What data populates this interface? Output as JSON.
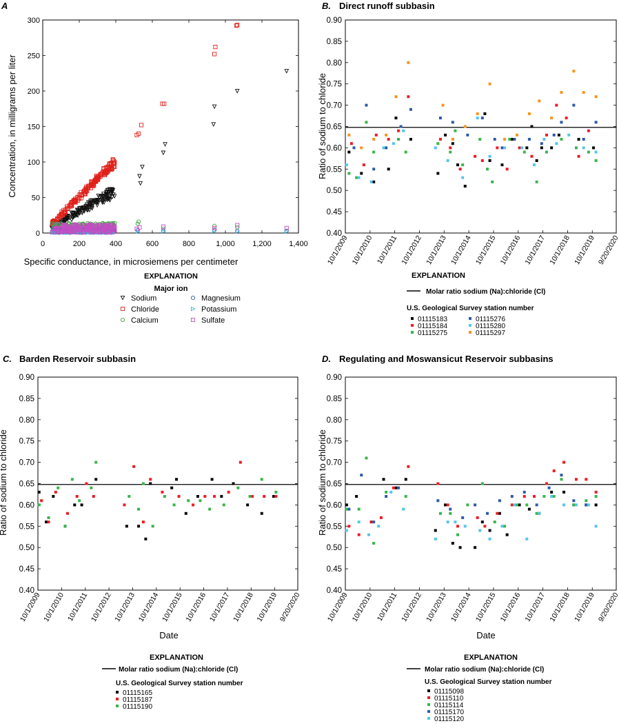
{
  "colors": {
    "sodium": "#111111",
    "chloride": "#e0201a",
    "calcium": "#3aa63a",
    "magnesium": "#2c57b5",
    "potassium": "#3ab0d6",
    "sulfate": "#c24ec2",
    "s1": "#000000",
    "s2": "#ee1c24",
    "s3": "#39b54a",
    "s4": "#2e5aa8",
    "s5": "#56c5e8",
    "s6": "#f7941d"
  },
  "chart_data": [
    {
      "panel": "A",
      "type": "scatter",
      "xlabel": "Specific conductance, in microsiemens per centimeter",
      "ylabel": "Concentration, in milligrams per liter",
      "xlim": [
        0,
        1400
      ],
      "ylim": [
        0,
        300
      ],
      "xticks": [
        "0",
        "200",
        "400",
        "600",
        "800",
        "1,000",
        "1,200",
        "1,400"
      ],
      "yticks": [
        "0",
        "50",
        "100",
        "150",
        "200",
        "250",
        "300"
      ],
      "legend_title": "EXPLANATION",
      "legend_subtitle": "Major ion",
      "series": [
        {
          "key": "sodium",
          "name": "Sodium",
          "marker": "triangle-down",
          "trend": [
            0.13,
            0.17
          ],
          "x": [
            530,
            545,
            535,
            660,
            670,
            935,
            940,
            1065,
            1335
          ],
          "y": [
            80,
            93,
            70,
            113,
            125,
            153,
            178,
            200,
            228
          ]
        },
        {
          "key": "chloride",
          "name": "Chloride",
          "marker": "square",
          "trend": [
            0.24,
            0.27
          ],
          "x": [
            515,
            525,
            540,
            655,
            665,
            940,
            945,
            1060,
            1065
          ],
          "y": [
            138,
            140,
            152,
            182,
            182,
            252,
            262,
            292,
            293
          ]
        },
        {
          "key": "calcium",
          "name": "Calcium",
          "marker": "circle",
          "trend": [
            8,
            14
          ],
          "x": [
            520,
            525,
            660,
            940,
            1065
          ],
          "y": [
            13,
            16,
            6,
            10,
            8
          ]
        },
        {
          "key": "magnesium",
          "name": "Magnesium",
          "marker": "circle",
          "trend": [
            2,
            5
          ],
          "x": [
            520,
            660,
            940,
            1065,
            1335
          ],
          "y": [
            4,
            3,
            4,
            3,
            3
          ]
        },
        {
          "key": "potassium",
          "name": "Potassium",
          "marker": "triangle-right",
          "trend": [
            1,
            3
          ],
          "x": [
            520,
            660,
            940,
            1065,
            1335
          ],
          "y": [
            2,
            2,
            3,
            2,
            2
          ]
        },
        {
          "key": "sulfate",
          "name": "Sulfate",
          "marker": "square",
          "trend": [
            4,
            12
          ],
          "x": [
            515,
            530,
            660,
            940,
            1065,
            1335
          ],
          "y": [
            6,
            8,
            9,
            7,
            11,
            7
          ]
        }
      ]
    },
    {
      "panel": "B",
      "title": "Direct runoff subbasin",
      "type": "scatter",
      "ylabel": "Ratio of sodium to chloride",
      "xlabel": "",
      "ylim": [
        0.4,
        0.9
      ],
      "yticks": [
        "0.40",
        "0.45",
        "0.50",
        "0.55",
        "0.60",
        "0.65",
        "0.70",
        "0.75",
        "0.80",
        "0.85",
        "0.90"
      ],
      "xticks": [
        "10/1/2009",
        "10/1/2010",
        "10/1/2011",
        "10/1/2012",
        "10/1/2013",
        "10/1/2014",
        "10/1/2015",
        "10/1/2016",
        "10/1/2017",
        "10/1/2018",
        "10/1/2019",
        "9/20/2020"
      ],
      "reference_line": {
        "value": 0.648,
        "label": "Molar ratio sodium (Na):chloride (Cl)"
      },
      "legend_title": "EXPLANATION",
      "legend_subtitle": "U.S. Geological Survey station number",
      "series": [
        {
          "name": "01115183",
          "color_key": "s1",
          "x": [
            2009.9,
            2010.4,
            2010.9,
            2011.5,
            2011.8,
            2012.4,
            2013.5,
            2013.8,
            2014.1,
            2014.3,
            2014.6,
            2015.4,
            2015.6,
            2016.1,
            2016.5,
            2017.1,
            2017.3,
            2017.5,
            2017.7,
            2018.1,
            2018.4,
            2019.2,
            2019.8
          ],
          "y": [
            0.59,
            0.54,
            0.52,
            0.55,
            0.67,
            0.62,
            0.54,
            0.63,
            0.61,
            0.56,
            0.51,
            0.68,
            0.57,
            0.56,
            0.62,
            0.6,
            0.65,
            0.57,
            0.6,
            0.6,
            0.63,
            0.62,
            0.6
          ]
        },
        {
          "name": "01115184",
          "color_key": "s2",
          "x": [
            2010.0,
            2010.5,
            2011.0,
            2011.5,
            2011.9,
            2012.3,
            2013.6,
            2014.0,
            2014.4,
            2015.0,
            2015.3,
            2015.9,
            2016.3,
            2016.8,
            2017.3,
            2017.9,
            2018.3,
            2018.7,
            2019.2,
            2019.6
          ],
          "y": [
            0.61,
            0.56,
            0.63,
            0.62,
            0.64,
            0.72,
            0.62,
            0.6,
            0.55,
            0.58,
            0.57,
            0.6,
            0.55,
            0.6,
            0.58,
            0.63,
            0.7,
            0.67,
            0.58,
            0.64
          ]
        },
        {
          "name": "01115275",
          "color_key": "s3",
          "x": [
            2009.9,
            2010.2,
            2010.6,
            2010.9,
            2011.4,
            2011.9,
            2012.2,
            2013.5,
            2014.0,
            2014.2,
            2014.5,
            2015.2,
            2015.5,
            2015.7,
            2016.4,
            2017.0,
            2017.5,
            2017.9,
            2018.5,
            2019.1,
            2019.6,
            2019.9
          ],
          "y": [
            0.54,
            0.53,
            0.66,
            0.59,
            0.6,
            0.62,
            0.59,
            0.61,
            0.59,
            0.64,
            0.56,
            0.62,
            0.55,
            0.52,
            0.62,
            0.59,
            0.52,
            0.59,
            0.62,
            0.6,
            0.59,
            0.57
          ]
        },
        {
          "name": "01115276",
          "color_key": "s4",
          "x": [
            2010.1,
            2010.6,
            2010.9,
            2011.4,
            2012.0,
            2012.4,
            2013.6,
            2014.1,
            2014.7,
            2015.3,
            2015.8,
            2016.1,
            2016.6,
            2017.2,
            2017.7,
            2018.2,
            2018.5,
            2019.0,
            2019.4,
            2019.9
          ],
          "y": [
            0.6,
            0.7,
            0.55,
            0.6,
            0.65,
            0.69,
            0.67,
            0.66,
            0.63,
            0.67,
            0.62,
            0.6,
            0.62,
            0.62,
            0.61,
            0.63,
            0.66,
            0.7,
            0.62,
            0.66
          ]
        },
        {
          "name": "01115280",
          "color_key": "s5",
          "x": [
            2009.8,
            2010.3,
            2010.8,
            2011.3,
            2011.7,
            2012.1,
            2013.4,
            2013.9,
            2014.5,
            2015.1,
            2015.6,
            2016.2,
            2016.9,
            2017.4,
            2017.8,
            2018.3,
            2018.8,
            2019.4,
            2019.9
          ],
          "y": [
            0.56,
            0.53,
            0.52,
            0.6,
            0.61,
            0.64,
            0.6,
            0.57,
            0.53,
            0.67,
            0.58,
            0.6,
            0.6,
            0.56,
            0.62,
            0.61,
            0.63,
            0.6,
            0.59
          ]
        },
        {
          "name": "01115297",
          "color_key": "s6",
          "x": [
            2009.9,
            2010.4,
            2010.9,
            2011.4,
            2011.8,
            2012.3,
            2013.7,
            2014.1,
            2014.6,
            2015.1,
            2015.6,
            2016.2,
            2016.7,
            2017.2,
            2017.6,
            2018.1,
            2018.5,
            2019.0,
            2019.4,
            2019.9
          ],
          "y": [
            0.63,
            0.6,
            0.62,
            0.63,
            0.72,
            0.8,
            0.7,
            0.62,
            0.65,
            0.68,
            0.75,
            0.62,
            0.63,
            0.68,
            0.71,
            0.67,
            0.73,
            0.78,
            0.73,
            0.72
          ]
        }
      ]
    },
    {
      "panel": "C",
      "title": "Barden Reservoir subbasin",
      "type": "scatter",
      "ylabel": "Ratio of sodium to chloride",
      "xlabel": "Date",
      "ylim": [
        0.4,
        0.9
      ],
      "yticks": [
        "0.40",
        "0.45",
        "0.50",
        "0.55",
        "0.60",
        "0.65",
        "0.70",
        "0.75",
        "0.80",
        "0.85",
        "0.90"
      ],
      "xticks": [
        "10/1/2009",
        "10/1/2010",
        "10/1/2011",
        "10/1/2012",
        "10/1/2013",
        "10/1/2014",
        "10/1/2015",
        "10/1/2016",
        "10/1/2017",
        "10/1/2018",
        "10/1/2019",
        "9/20/2020"
      ],
      "reference_line": {
        "value": 0.648,
        "label": "Molar ratio sodium (Na):chloride (Cl)"
      },
      "legend_title": "EXPLANATION",
      "legend_subtitle": "U.S. Geological Survey station number",
      "series": [
        {
          "name": "01115165",
          "color_key": "s1",
          "x": [
            2009.8,
            2010.1,
            2010.4,
            2010.9,
            2011.3,
            2011.6,
            2012.2,
            2013.5,
            2014.0,
            2014.3,
            2014.5,
            2015.4,
            2015.6,
            2016.0,
            2016.5,
            2017.1,
            2017.5,
            2018.0,
            2018.6,
            2019.2,
            2019.7
          ],
          "y": [
            0.63,
            0.56,
            0.62,
            0.55,
            0.6,
            0.6,
            0.66,
            0.55,
            0.55,
            0.52,
            0.65,
            0.64,
            0.66,
            0.58,
            0.62,
            0.66,
            0.62,
            0.65,
            0.6,
            0.58,
            0.62
          ]
        },
        {
          "name": "01115187",
          "color_key": "s2",
          "x": [
            2009.9,
            2010.2,
            2010.5,
            2011.0,
            2011.4,
            2011.8,
            2012.1,
            2013.4,
            2013.8,
            2014.2,
            2014.5,
            2015.0,
            2015.7,
            2016.3,
            2016.8,
            2017.2,
            2017.8,
            2018.3,
            2018.8,
            2019.3,
            2019.8
          ],
          "y": [
            0.61,
            0.56,
            0.63,
            0.58,
            0.62,
            0.65,
            0.62,
            0.6,
            0.69,
            0.56,
            0.66,
            0.63,
            0.62,
            0.6,
            0.62,
            0.62,
            0.63,
            0.7,
            0.62,
            0.62,
            0.62
          ]
        },
        {
          "name": "01115190",
          "color_key": "s3",
          "x": [
            2009.8,
            2010.2,
            2010.6,
            2010.9,
            2011.2,
            2011.5,
            2012.0,
            2012.2,
            2013.6,
            2014.0,
            2014.2,
            2014.6,
            2015.1,
            2015.5,
            2016.1,
            2016.6,
            2017.0,
            2017.6,
            2018.2,
            2018.7,
            2019.2,
            2019.8
          ],
          "y": [
            0.6,
            0.57,
            0.64,
            0.55,
            0.66,
            0.61,
            0.64,
            0.7,
            0.62,
            0.59,
            0.65,
            0.55,
            0.62,
            0.6,
            0.61,
            0.61,
            0.59,
            0.6,
            0.64,
            0.62,
            0.66,
            0.63
          ]
        }
      ]
    },
    {
      "panel": "D",
      "title": "Regulating and Moswansicut Reservoir subbasins",
      "type": "scatter",
      "ylabel": "Ratio of sodium to chloride",
      "xlabel": "Date",
      "ylim": [
        0.4,
        0.9
      ],
      "yticks": [
        "0.40",
        "0.45",
        "0.50",
        "0.55",
        "0.60",
        "0.65",
        "0.70",
        "0.75",
        "0.80",
        "0.85",
        "0.90"
      ],
      "xticks": [
        "10/1/2009",
        "10/1/2010",
        "10/1/2011",
        "10/1/2012",
        "10/1/2013",
        "10/1/2014",
        "10/1/2015",
        "10/1/2016",
        "10/1/2017",
        "10/1/2018",
        "10/1/2019",
        "9/20/2020"
      ],
      "reference_line": {
        "value": 0.648,
        "label": "Molar ratio sodium (Na):chloride (Cl)"
      },
      "legend_title": "EXPLANATION",
      "legend_subtitle": "U.S. Geological Survey station number",
      "series": [
        {
          "name": "01115098",
          "color_key": "s1",
          "x": [
            2009.8,
            2010.2,
            2010.8,
            2011.3,
            2011.8,
            2012.2,
            2013.4,
            2013.8,
            2014.1,
            2014.4,
            2015.0,
            2015.3,
            2015.6,
            2016.0,
            2016.3,
            2016.8,
            2017.2,
            2017.6,
            2018.1,
            2018.6,
            2019.0,
            2019.5,
            2019.9
          ],
          "y": [
            0.6,
            0.62,
            0.56,
            0.66,
            0.64,
            0.66,
            0.54,
            0.6,
            0.51,
            0.5,
            0.5,
            0.56,
            0.54,
            0.58,
            0.53,
            0.6,
            0.59,
            0.58,
            0.63,
            0.63,
            0.6,
            0.6,
            0.6
          ]
        },
        {
          "name": "01115110",
          "color_key": "s2",
          "x": [
            2009.9,
            2010.3,
            2010.8,
            2011.2,
            2011.7,
            2012.3,
            2013.5,
            2013.9,
            2014.3,
            2015.1,
            2015.4,
            2015.9,
            2016.5,
            2017.0,
            2017.4,
            2017.9,
            2018.2,
            2018.6,
            2019.1,
            2019.5,
            2019.9
          ],
          "y": [
            0.55,
            0.53,
            0.56,
            0.57,
            0.64,
            0.69,
            0.65,
            0.6,
            0.55,
            0.57,
            0.55,
            0.58,
            0.6,
            0.62,
            0.62,
            0.65,
            0.68,
            0.7,
            0.66,
            0.66,
            0.63
          ]
        },
        {
          "name": "01115114",
          "color_key": "s3",
          "x": [
            2009.8,
            2010.3,
            2010.6,
            2010.9,
            2011.4,
            2011.9,
            2012.2,
            2013.6,
            2014.0,
            2014.3,
            2014.7,
            2015.3,
            2015.8,
            2016.2,
            2016.7,
            2017.1,
            2017.5,
            2017.8,
            2018.2,
            2018.5,
            2019.0,
            2019.5,
            2019.9
          ],
          "y": [
            0.59,
            0.59,
            0.71,
            0.51,
            0.63,
            0.64,
            0.62,
            0.58,
            0.58,
            0.53,
            0.6,
            0.65,
            0.56,
            0.55,
            0.6,
            0.6,
            0.58,
            0.62,
            0.62,
            0.66,
            0.6,
            0.61,
            0.62
          ]
        },
        {
          "name": "01115170",
          "color_key": "s4",
          "x": [
            2009.9,
            2010.4,
            2010.9,
            2011.4,
            2011.9,
            2013.5,
            2014.0,
            2014.5,
            2015.0,
            2015.5,
            2016.0,
            2016.5,
            2017.0,
            2017.5,
            2018.0,
            2018.5,
            2019.0,
            2019.5
          ],
          "y": [
            0.59,
            0.67,
            0.56,
            0.62,
            0.64,
            0.61,
            0.59,
            0.57,
            0.6,
            0.58,
            0.61,
            0.62,
            0.63,
            0.6,
            0.64,
            0.67,
            0.61,
            0.6
          ]
        },
        {
          "name": "01115120",
          "color_key": "s5",
          "x": [
            2009.8,
            2010.3,
            2010.7,
            2011.1,
            2011.6,
            2012.1,
            2013.4,
            2013.9,
            2014.2,
            2014.6,
            2015.2,
            2015.6,
            2016.1,
            2016.6,
            2017.1,
            2017.6,
            2018.1,
            2018.6,
            2019.1,
            2019.6,
            2019.9
          ],
          "y": [
            0.54,
            0.56,
            0.53,
            0.55,
            0.63,
            0.59,
            0.52,
            0.56,
            0.56,
            0.55,
            0.54,
            0.52,
            0.55,
            0.6,
            0.52,
            0.58,
            0.62,
            0.6,
            0.6,
            0.6,
            0.55
          ]
        }
      ]
    }
  ]
}
